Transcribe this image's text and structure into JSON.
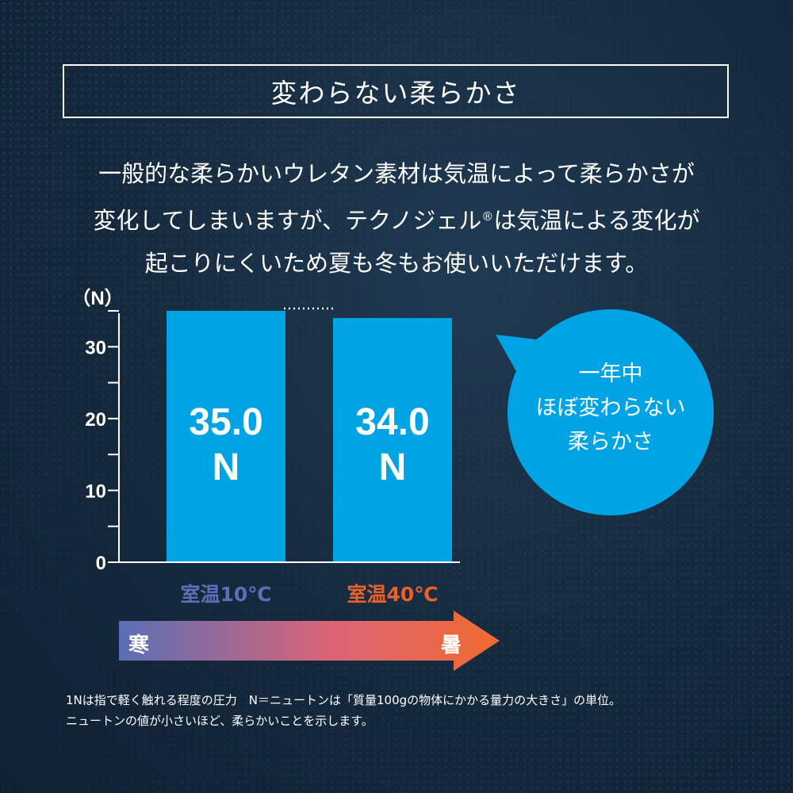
{
  "title": "変わらない柔らかさ",
  "description": {
    "line1": "一般的な柔らかいウレタン素材は気温によって柔らかさが",
    "line2_pre": "変化してしまいますが、テクノジェル",
    "line2_reg": "®",
    "line2_post": "は気温による変化が",
    "line3": "起こりにくいため夏も冬もお使いいただけます。"
  },
  "chart_data": {
    "type": "bar",
    "title": "",
    "xlabel": "",
    "ylabel": "（N）",
    "ylim": [
      0,
      35
    ],
    "yticks": [
      0,
      10,
      20,
      30
    ],
    "categories": [
      "室温10℃",
      "室温40℃"
    ],
    "values": [
      35.0,
      34.0
    ],
    "value_labels": [
      "35.0",
      "34.0"
    ],
    "unit": "N",
    "category_colors": [
      "#5a6fb6",
      "#e8612c"
    ],
    "bar_color": "#00a4e4"
  },
  "bubble": {
    "line1": "一年中",
    "line2": "ほぼ変わらない",
    "line3": "柔らかさ"
  },
  "temperature_arrow": {
    "left_label": "寒",
    "right_label": "暑"
  },
  "notes": {
    "line1": "1Nは指で軽く触れる程度の圧力　N＝ニュートンは「質量100gの物体にかかる量力の大きさ」の単位。",
    "line2": "ニュートンの値が小さいほど、柔らかいことを示します。"
  },
  "colors": {
    "background": "#15293d",
    "accent_blue": "#00a4e4",
    "cold": "#5a6fb6",
    "hot": "#e8612c"
  }
}
